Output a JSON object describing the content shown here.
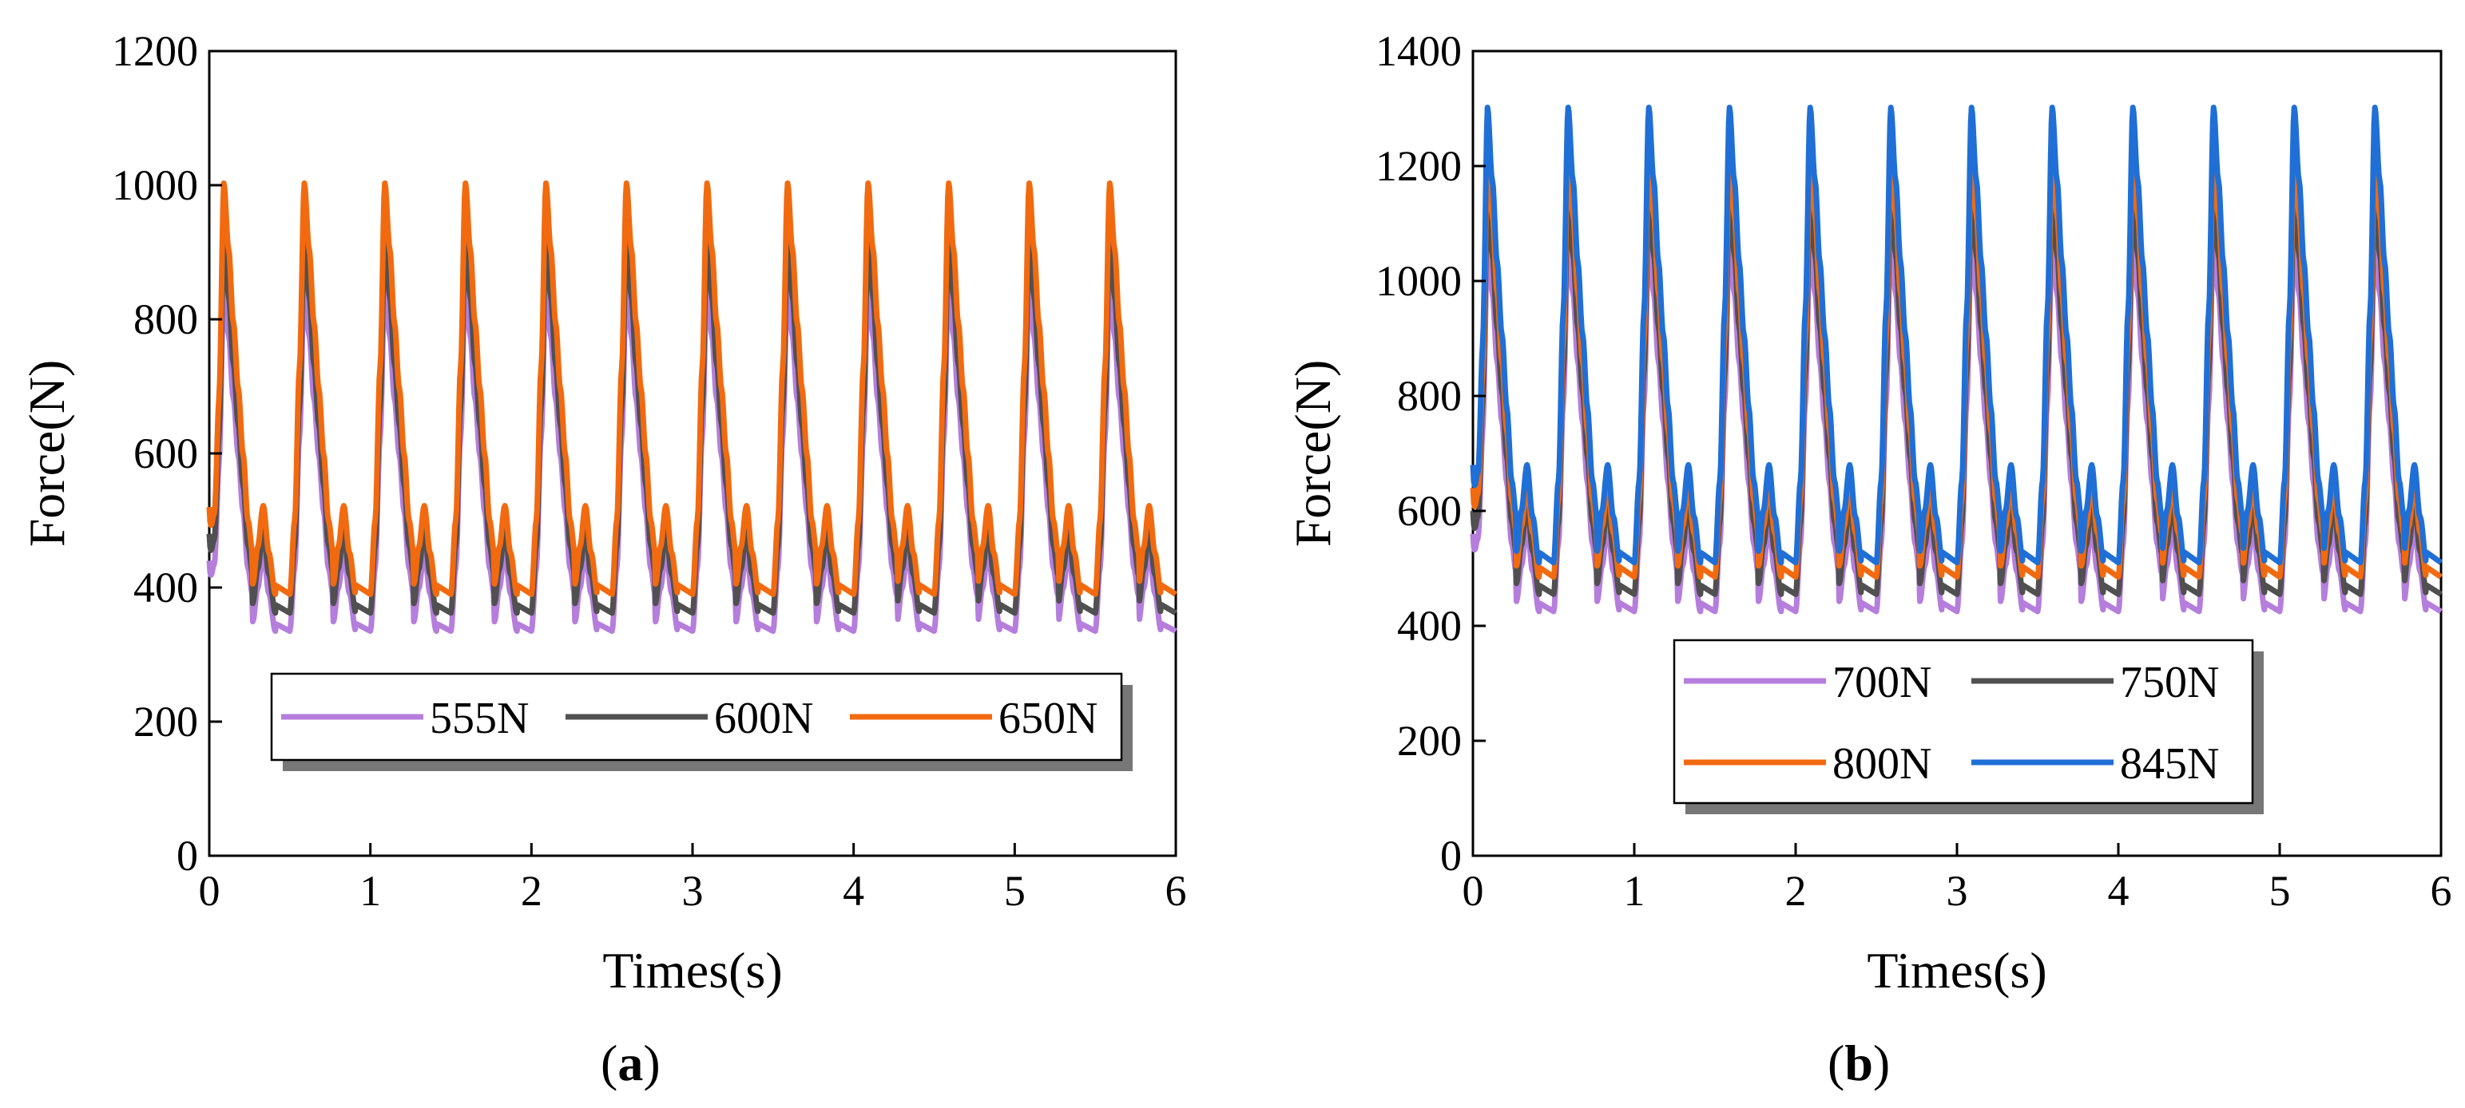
{
  "figure": {
    "panels": [
      {
        "label_open": "(",
        "label_letter": "a",
        "label_close": ")"
      },
      {
        "label_open": "(",
        "label_letter": "b",
        "label_close": ")"
      }
    ]
  },
  "chart_data": [
    {
      "type": "line",
      "panel": "a",
      "xlabel": "Times(s)",
      "ylabel": "Force(N)",
      "xlim": [
        0,
        6
      ],
      "ylim": [
        0,
        1200
      ],
      "xticks": [
        0,
        1,
        2,
        3,
        4,
        5,
        6
      ],
      "yticks": [
        0,
        200,
        400,
        600,
        800,
        1000,
        1200
      ],
      "grid": false,
      "legend": {
        "placement": "bottom-center",
        "columns": 3
      },
      "period_s": 0.5,
      "series": [
        {
          "name": "555N",
          "color": "#b57edc",
          "start": 440,
          "peak": 860,
          "valley": 335,
          "secondary_peak": 455,
          "secondary_valley": 410
        },
        {
          "name": "600N",
          "color": "#505050",
          "start": 480,
          "peak": 925,
          "valley": 362,
          "secondary_peak": 485,
          "secondary_valley": 445
        },
        {
          "name": "650N",
          "color": "#f26a10",
          "start": 520,
          "peak": 1003,
          "valley": 390,
          "secondary_peak": 522,
          "secondary_valley": 482
        }
      ]
    },
    {
      "type": "line",
      "panel": "b",
      "xlabel": "Times(s)",
      "ylabel": "Force(N)",
      "xlim": [
        0,
        6
      ],
      "ylim": [
        0,
        1400
      ],
      "xticks": [
        0,
        1,
        2,
        3,
        4,
        5,
        6
      ],
      "yticks": [
        0,
        200,
        400,
        600,
        800,
        1000,
        1200,
        1400
      ],
      "grid": false,
      "legend": {
        "placement": "bottom-center",
        "columns": 2
      },
      "period_s": 0.5,
      "series": [
        {
          "name": "700N",
          "color": "#b57edc",
          "start": 560,
          "peak": 1085,
          "valley": 425,
          "secondary_peak": 575,
          "secondary_valley": 525
        },
        {
          "name": "750N",
          "color": "#505050",
          "start": 600,
          "peak": 1160,
          "valley": 455,
          "secondary_peak": 615,
          "secondary_valley": 560
        },
        {
          "name": "800N",
          "color": "#f26a10",
          "start": 640,
          "peak": 1235,
          "valley": 485,
          "secondary_peak": 650,
          "secondary_valley": 600
        },
        {
          "name": "845N",
          "color": "#1f6fd6",
          "start": 680,
          "peak": 1302,
          "valley": 510,
          "secondary_peak": 680,
          "secondary_valley": 630
        }
      ]
    }
  ]
}
